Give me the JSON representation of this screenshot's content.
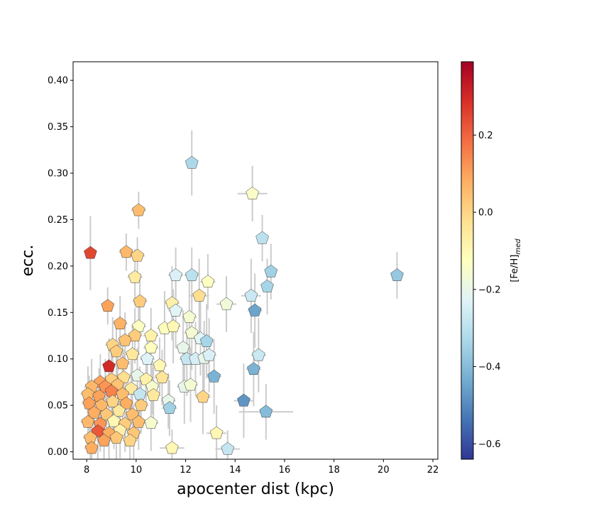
{
  "chart_data": {
    "type": "scatter",
    "title": "",
    "xlabel": "apocenter dist (kpc)",
    "ylabel": "ecc.",
    "xlim": [
      7.45,
      22.2
    ],
    "ylim": [
      -0.008,
      0.42
    ],
    "xticks": [
      8,
      10,
      12,
      14,
      16,
      18,
      20,
      22
    ],
    "yticks": [
      0.0,
      0.05,
      0.1,
      0.15,
      0.2,
      0.25,
      0.3,
      0.35,
      0.4
    ],
    "xtick_labels": [
      "8",
      "10",
      "12",
      "14",
      "16",
      "18",
      "20",
      "22"
    ],
    "ytick_labels": [
      "0.00",
      "0.05",
      "0.10",
      "0.15",
      "0.20",
      "0.25",
      "0.30",
      "0.35",
      "0.40"
    ],
    "colorbar": {
      "label": "[Fe/H]",
      "label_subscript": "med",
      "colormap": "RdYlBu_r",
      "vmin": -0.64,
      "vmax": 0.39,
      "ticks": [
        -0.6,
        -0.4,
        -0.2,
        0.0,
        0.2
      ],
      "tick_labels": [
        "−0.6",
        "−0.4",
        "−0.2",
        "0.0",
        "0.2"
      ]
    },
    "marker": "pentagon",
    "errorbar_color": "#cccccc",
    "points": [
      {
        "x": 12.25,
        "y": 0.311,
        "xerr": 0.1,
        "yerr": 0.035,
        "feh": -0.33
      },
      {
        "x": 14.7,
        "y": 0.278,
        "xerr": 0.6,
        "yerr": 0.03,
        "feh": -0.14
      },
      {
        "x": 10.1,
        "y": 0.26,
        "xerr": 0.3,
        "yerr": 0.02,
        "feh": 0.05
      },
      {
        "x": 15.1,
        "y": 0.23,
        "xerr": 0.2,
        "yerr": 0.025,
        "feh": -0.3
      },
      {
        "x": 8.15,
        "y": 0.214,
        "xerr": 0.1,
        "yerr": 0.04,
        "feh": 0.25
      },
      {
        "x": 9.6,
        "y": 0.215,
        "xerr": 0.3,
        "yerr": 0.02,
        "feh": 0.06
      },
      {
        "x": 10.05,
        "y": 0.211,
        "xerr": 0.3,
        "yerr": 0.02,
        "feh": 0.0
      },
      {
        "x": 20.55,
        "y": 0.19,
        "xerr": 0.1,
        "yerr": 0.025,
        "feh": -0.37
      },
      {
        "x": 15.45,
        "y": 0.194,
        "xerr": 0.2,
        "yerr": 0.03,
        "feh": -0.35
      },
      {
        "x": 11.6,
        "y": 0.19,
        "xerr": 0.3,
        "yerr": 0.03,
        "feh": -0.24
      },
      {
        "x": 12.25,
        "y": 0.19,
        "xerr": 0.3,
        "yerr": 0.03,
        "feh": -0.3
      },
      {
        "x": 9.95,
        "y": 0.188,
        "xerr": 0.3,
        "yerr": 0.03,
        "feh": -0.06
      },
      {
        "x": 12.9,
        "y": 0.183,
        "xerr": 0.3,
        "yerr": 0.03,
        "feh": -0.13
      },
      {
        "x": 15.3,
        "y": 0.178,
        "xerr": 0.2,
        "yerr": 0.03,
        "feh": -0.34
      },
      {
        "x": 12.55,
        "y": 0.168,
        "xerr": 0.4,
        "yerr": 0.04,
        "feh": -0.02
      },
      {
        "x": 14.65,
        "y": 0.168,
        "xerr": 0.4,
        "yerr": 0.04,
        "feh": -0.27
      },
      {
        "x": 13.65,
        "y": 0.159,
        "xerr": 0.4,
        "yerr": 0.03,
        "feh": -0.17
      },
      {
        "x": 10.15,
        "y": 0.162,
        "xerr": 0.3,
        "yerr": 0.03,
        "feh": 0.02
      },
      {
        "x": 8.85,
        "y": 0.157,
        "xerr": 0.2,
        "yerr": 0.02,
        "feh": 0.1
      },
      {
        "x": 11.45,
        "y": 0.16,
        "xerr": 0.3,
        "yerr": 0.04,
        "feh": -0.08
      },
      {
        "x": 14.8,
        "y": 0.152,
        "xerr": 0.3,
        "yerr": 0.04,
        "feh": -0.45
      },
      {
        "x": 11.6,
        "y": 0.152,
        "xerr": 0.3,
        "yerr": 0.04,
        "feh": -0.22
      },
      {
        "x": 9.35,
        "y": 0.138,
        "xerr": 0.3,
        "yerr": 0.03,
        "feh": 0.07
      },
      {
        "x": 10.1,
        "y": 0.135,
        "xerr": 0.3,
        "yerr": 0.03,
        "feh": -0.13
      },
      {
        "x": 11.15,
        "y": 0.133,
        "xerr": 0.3,
        "yerr": 0.04,
        "feh": -0.12
      },
      {
        "x": 11.5,
        "y": 0.135,
        "xerr": 0.3,
        "yerr": 0.04,
        "feh": -0.1
      },
      {
        "x": 12.15,
        "y": 0.145,
        "xerr": 0.3,
        "yerr": 0.04,
        "feh": -0.16
      },
      {
        "x": 9.95,
        "y": 0.125,
        "xerr": 0.3,
        "yerr": 0.03,
        "feh": 0.02
      },
      {
        "x": 10.6,
        "y": 0.125,
        "xerr": 0.3,
        "yerr": 0.03,
        "feh": -0.08
      },
      {
        "x": 12.25,
        "y": 0.128,
        "xerr": 0.3,
        "yerr": 0.04,
        "feh": -0.16
      },
      {
        "x": 12.6,
        "y": 0.122,
        "xerr": 0.3,
        "yerr": 0.04,
        "feh": -0.22
      },
      {
        "x": 12.85,
        "y": 0.119,
        "xerr": 0.3,
        "yerr": 0.04,
        "feh": -0.34
      },
      {
        "x": 9.55,
        "y": 0.12,
        "xerr": 0.3,
        "yerr": 0.03,
        "feh": 0.04
      },
      {
        "x": 9.05,
        "y": 0.115,
        "xerr": 0.3,
        "yerr": 0.03,
        "feh": 0.0
      },
      {
        "x": 10.6,
        "y": 0.112,
        "xerr": 0.3,
        "yerr": 0.03,
        "feh": -0.12
      },
      {
        "x": 11.9,
        "y": 0.112,
        "xerr": 0.3,
        "yerr": 0.04,
        "feh": -0.2
      },
      {
        "x": 9.2,
        "y": 0.108,
        "xerr": 0.3,
        "yerr": 0.03,
        "feh": 0.02
      },
      {
        "x": 9.85,
        "y": 0.105,
        "xerr": 0.3,
        "yerr": 0.03,
        "feh": -0.05
      },
      {
        "x": 12.05,
        "y": 0.1,
        "xerr": 0.3,
        "yerr": 0.04,
        "feh": -0.28
      },
      {
        "x": 12.4,
        "y": 0.1,
        "xerr": 0.3,
        "yerr": 0.04,
        "feh": -0.25
      },
      {
        "x": 12.75,
        "y": 0.101,
        "xerr": 0.3,
        "yerr": 0.04,
        "feh": -0.2
      },
      {
        "x": 12.95,
        "y": 0.104,
        "xerr": 0.3,
        "yerr": 0.04,
        "feh": -0.24
      },
      {
        "x": 14.95,
        "y": 0.104,
        "xerr": 0.3,
        "yerr": 0.04,
        "feh": -0.27
      },
      {
        "x": 10.45,
        "y": 0.1,
        "xerr": 0.3,
        "yerr": 0.03,
        "feh": -0.23
      },
      {
        "x": 8.9,
        "y": 0.092,
        "xerr": 0.2,
        "yerr": 0.03,
        "feh": 0.3
      },
      {
        "x": 9.45,
        "y": 0.095,
        "xerr": 0.3,
        "yerr": 0.03,
        "feh": 0.05
      },
      {
        "x": 10.95,
        "y": 0.093,
        "xerr": 0.3,
        "yerr": 0.03,
        "feh": -0.1
      },
      {
        "x": 14.75,
        "y": 0.089,
        "xerr": 0.3,
        "yerr": 0.04,
        "feh": -0.42
      },
      {
        "x": 13.15,
        "y": 0.081,
        "xerr": 0.3,
        "yerr": 0.04,
        "feh": -0.42
      },
      {
        "x": 11.05,
        "y": 0.08,
        "xerr": 0.3,
        "yerr": 0.03,
        "feh": -0.04
      },
      {
        "x": 8.55,
        "y": 0.075,
        "xerr": 0.3,
        "yerr": 0.03,
        "feh": 0.1
      },
      {
        "x": 9.0,
        "y": 0.078,
        "xerr": 0.3,
        "yerr": 0.03,
        "feh": 0.02
      },
      {
        "x": 9.5,
        "y": 0.08,
        "xerr": 0.3,
        "yerr": 0.03,
        "feh": -0.02
      },
      {
        "x": 10.05,
        "y": 0.082,
        "xerr": 0.3,
        "yerr": 0.03,
        "feh": -0.2
      },
      {
        "x": 10.4,
        "y": 0.078,
        "xerr": 0.3,
        "yerr": 0.03,
        "feh": -0.08
      },
      {
        "x": 8.2,
        "y": 0.07,
        "xerr": 0.3,
        "yerr": 0.03,
        "feh": 0.06
      },
      {
        "x": 8.75,
        "y": 0.07,
        "xerr": 0.3,
        "yerr": 0.03,
        "feh": 0.12
      },
      {
        "x": 9.25,
        "y": 0.072,
        "xerr": 0.3,
        "yerr": 0.03,
        "feh": 0.04
      },
      {
        "x": 9.8,
        "y": 0.068,
        "xerr": 0.3,
        "yerr": 0.03,
        "feh": -0.05
      },
      {
        "x": 10.65,
        "y": 0.07,
        "xerr": 0.3,
        "yerr": 0.03,
        "feh": -0.15
      },
      {
        "x": 11.95,
        "y": 0.07,
        "xerr": 0.3,
        "yerr": 0.04,
        "feh": -0.2
      },
      {
        "x": 12.2,
        "y": 0.072,
        "xerr": 0.3,
        "yerr": 0.04,
        "feh": -0.16
      },
      {
        "x": 8.05,
        "y": 0.062,
        "xerr": 0.3,
        "yerr": 0.03,
        "feh": 0.05
      },
      {
        "x": 8.5,
        "y": 0.06,
        "xerr": 0.3,
        "yerr": 0.03,
        "feh": 0.1
      },
      {
        "x": 9.0,
        "y": 0.065,
        "xerr": 0.3,
        "yerr": 0.03,
        "feh": 0.15
      },
      {
        "x": 9.45,
        "y": 0.062,
        "xerr": 0.3,
        "yerr": 0.03,
        "feh": 0.05
      },
      {
        "x": 10.15,
        "y": 0.062,
        "xerr": 0.3,
        "yerr": 0.03,
        "feh": -0.28
      },
      {
        "x": 10.7,
        "y": 0.061,
        "xerr": 0.3,
        "yerr": 0.03,
        "feh": -0.05
      },
      {
        "x": 11.3,
        "y": 0.055,
        "xerr": 0.3,
        "yerr": 0.03,
        "feh": -0.2
      },
      {
        "x": 12.7,
        "y": 0.059,
        "xerr": 0.3,
        "yerr": 0.04,
        "feh": 0.0
      },
      {
        "x": 14.35,
        "y": 0.055,
        "xerr": 0.4,
        "yerr": 0.04,
        "feh": -0.48
      },
      {
        "x": 8.1,
        "y": 0.052,
        "xerr": 0.3,
        "yerr": 0.03,
        "feh": 0.1
      },
      {
        "x": 8.6,
        "y": 0.05,
        "xerr": 0.3,
        "yerr": 0.03,
        "feh": 0.06
      },
      {
        "x": 9.05,
        "y": 0.054,
        "xerr": 0.3,
        "yerr": 0.03,
        "feh": 0.0
      },
      {
        "x": 9.6,
        "y": 0.052,
        "xerr": 0.3,
        "yerr": 0.03,
        "feh": 0.08
      },
      {
        "x": 10.2,
        "y": 0.05,
        "xerr": 0.3,
        "yerr": 0.03,
        "feh": 0.02
      },
      {
        "x": 11.35,
        "y": 0.047,
        "xerr": 0.3,
        "yerr": 0.03,
        "feh": -0.35
      },
      {
        "x": 8.3,
        "y": 0.042,
        "xerr": 0.3,
        "yerr": 0.03,
        "feh": 0.08
      },
      {
        "x": 8.8,
        "y": 0.04,
        "xerr": 0.3,
        "yerr": 0.03,
        "feh": 0.03
      },
      {
        "x": 9.3,
        "y": 0.044,
        "xerr": 0.3,
        "yerr": 0.03,
        "feh": -0.05
      },
      {
        "x": 9.85,
        "y": 0.04,
        "xerr": 0.3,
        "yerr": 0.03,
        "feh": 0.05
      },
      {
        "x": 15.25,
        "y": 0.043,
        "xerr": 1.1,
        "yerr": 0.03,
        "feh": -0.4
      },
      {
        "x": 8.05,
        "y": 0.032,
        "xerr": 0.3,
        "yerr": 0.03,
        "feh": 0.06
      },
      {
        "x": 8.55,
        "y": 0.03,
        "xerr": 0.3,
        "yerr": 0.03,
        "feh": 0.12
      },
      {
        "x": 9.1,
        "y": 0.033,
        "xerr": 0.3,
        "yerr": 0.03,
        "feh": -0.1
      },
      {
        "x": 9.55,
        "y": 0.03,
        "xerr": 0.3,
        "yerr": 0.03,
        "feh": 0.02
      },
      {
        "x": 10.1,
        "y": 0.032,
        "xerr": 0.3,
        "yerr": 0.03,
        "feh": 0.05
      },
      {
        "x": 10.6,
        "y": 0.031,
        "xerr": 0.3,
        "yerr": 0.03,
        "feh": -0.15
      },
      {
        "x": 8.45,
        "y": 0.022,
        "xerr": 0.3,
        "yerr": 0.03,
        "feh": 0.22
      },
      {
        "x": 8.9,
        "y": 0.02,
        "xerr": 0.3,
        "yerr": 0.03,
        "feh": 0.08
      },
      {
        "x": 9.35,
        "y": 0.023,
        "xerr": 0.3,
        "yerr": 0.03,
        "feh": -0.08
      },
      {
        "x": 9.9,
        "y": 0.02,
        "xerr": 0.3,
        "yerr": 0.03,
        "feh": 0.03
      },
      {
        "x": 13.25,
        "y": 0.02,
        "xerr": 0.4,
        "yerr": 0.03,
        "feh": -0.1
      },
      {
        "x": 8.15,
        "y": 0.015,
        "xerr": 0.3,
        "yerr": 0.03,
        "feh": 0.05
      },
      {
        "x": 8.7,
        "y": 0.012,
        "xerr": 0.3,
        "yerr": 0.03,
        "feh": 0.1
      },
      {
        "x": 9.2,
        "y": 0.015,
        "xerr": 0.3,
        "yerr": 0.03,
        "feh": 0.03
      },
      {
        "x": 9.75,
        "y": 0.012,
        "xerr": 0.3,
        "yerr": 0.03,
        "feh": 0.0
      },
      {
        "x": 8.2,
        "y": 0.004,
        "xerr": 0.3,
        "yerr": 0.02,
        "feh": 0.08
      },
      {
        "x": 11.45,
        "y": 0.004,
        "xerr": 0.5,
        "yerr": 0.02,
        "feh": -0.1
      },
      {
        "x": 13.7,
        "y": 0.003,
        "xerr": 0.5,
        "yerr": 0.02,
        "feh": -0.28
      }
    ]
  }
}
